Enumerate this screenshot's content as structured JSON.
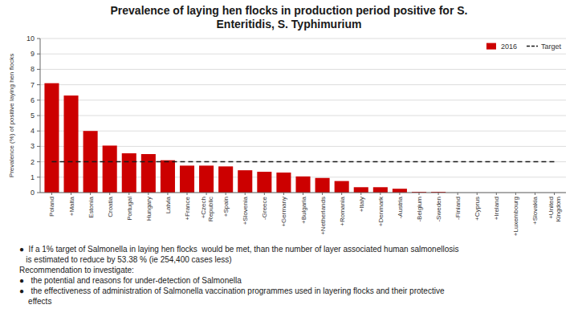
{
  "chart_data": {
    "type": "bar",
    "title": "Prevalence of laying hen flocks in production period positive for S.\nEnteritidis, S. Typhimurium",
    "ylabel": "Prevalence (%) of positive laying hen flocks",
    "categories": [
      "Poland",
      "+Malta",
      "Estonia",
      "Croatia",
      "Portugal",
      "Hungary",
      "Latvia",
      "+France",
      "+Czech\nRepublic",
      "+Spain",
      "+Slovenia",
      "-Greece",
      "+Germany",
      "+Bulgaria",
      "+Netherlands",
      "+Romania",
      "+Italy",
      "+Denmark",
      "-Austria",
      "-Belgium",
      "-Sweden",
      "-Finland",
      "+Cyprus",
      "+Ireland",
      "+Luxembourg",
      "+Slovakia",
      "+United\nKingdom"
    ],
    "series": [
      {
        "name": "2016",
        "type": "bar",
        "color": "#cc0000",
        "values": [
          7.1,
          6.3,
          4.0,
          3.05,
          2.55,
          2.5,
          2.1,
          1.75,
          1.75,
          1.7,
          1.45,
          1.35,
          1.3,
          1.05,
          0.95,
          0.75,
          0.35,
          0.35,
          0.25,
          0.05,
          0.05,
          0.0,
          0.0,
          0.0,
          0.0,
          0.0,
          0.0
        ]
      },
      {
        "name": "Target",
        "type": "line",
        "line_style": "dashed",
        "color": "#1a1a1a",
        "values": [
          2.0,
          2.0,
          2.0,
          2.0,
          2.0,
          2.0,
          2.0,
          2.0,
          2.0,
          2.0,
          2.0,
          2.0,
          2.0,
          2.0,
          2.0,
          2.0,
          2.0,
          2.0,
          2.0,
          2.0,
          2.0,
          2.0,
          2.0,
          2.0,
          2.0,
          2.0,
          2.0
        ]
      }
    ],
    "ylim": [
      0,
      10
    ],
    "yticks": [
      0,
      1,
      2,
      3,
      4,
      5,
      6,
      7,
      8,
      9,
      10
    ],
    "grid": true,
    "legend": "upper right",
    "annotations": [
      "●  If a 1% target of Salmonella in laying hen flocks  would be met, than the number of layer associated human salmonellosis",
      "   is estimated to reduce by 53.38 % (ie 254,400 cases less)",
      "Recommendation to investigate:",
      "●   the potential and reasons for under-detection of Salmonella",
      "●   the effectiveness of administration of Salmonella vaccination programmes used in layering flocks and their protective",
      "    effects"
    ]
  }
}
